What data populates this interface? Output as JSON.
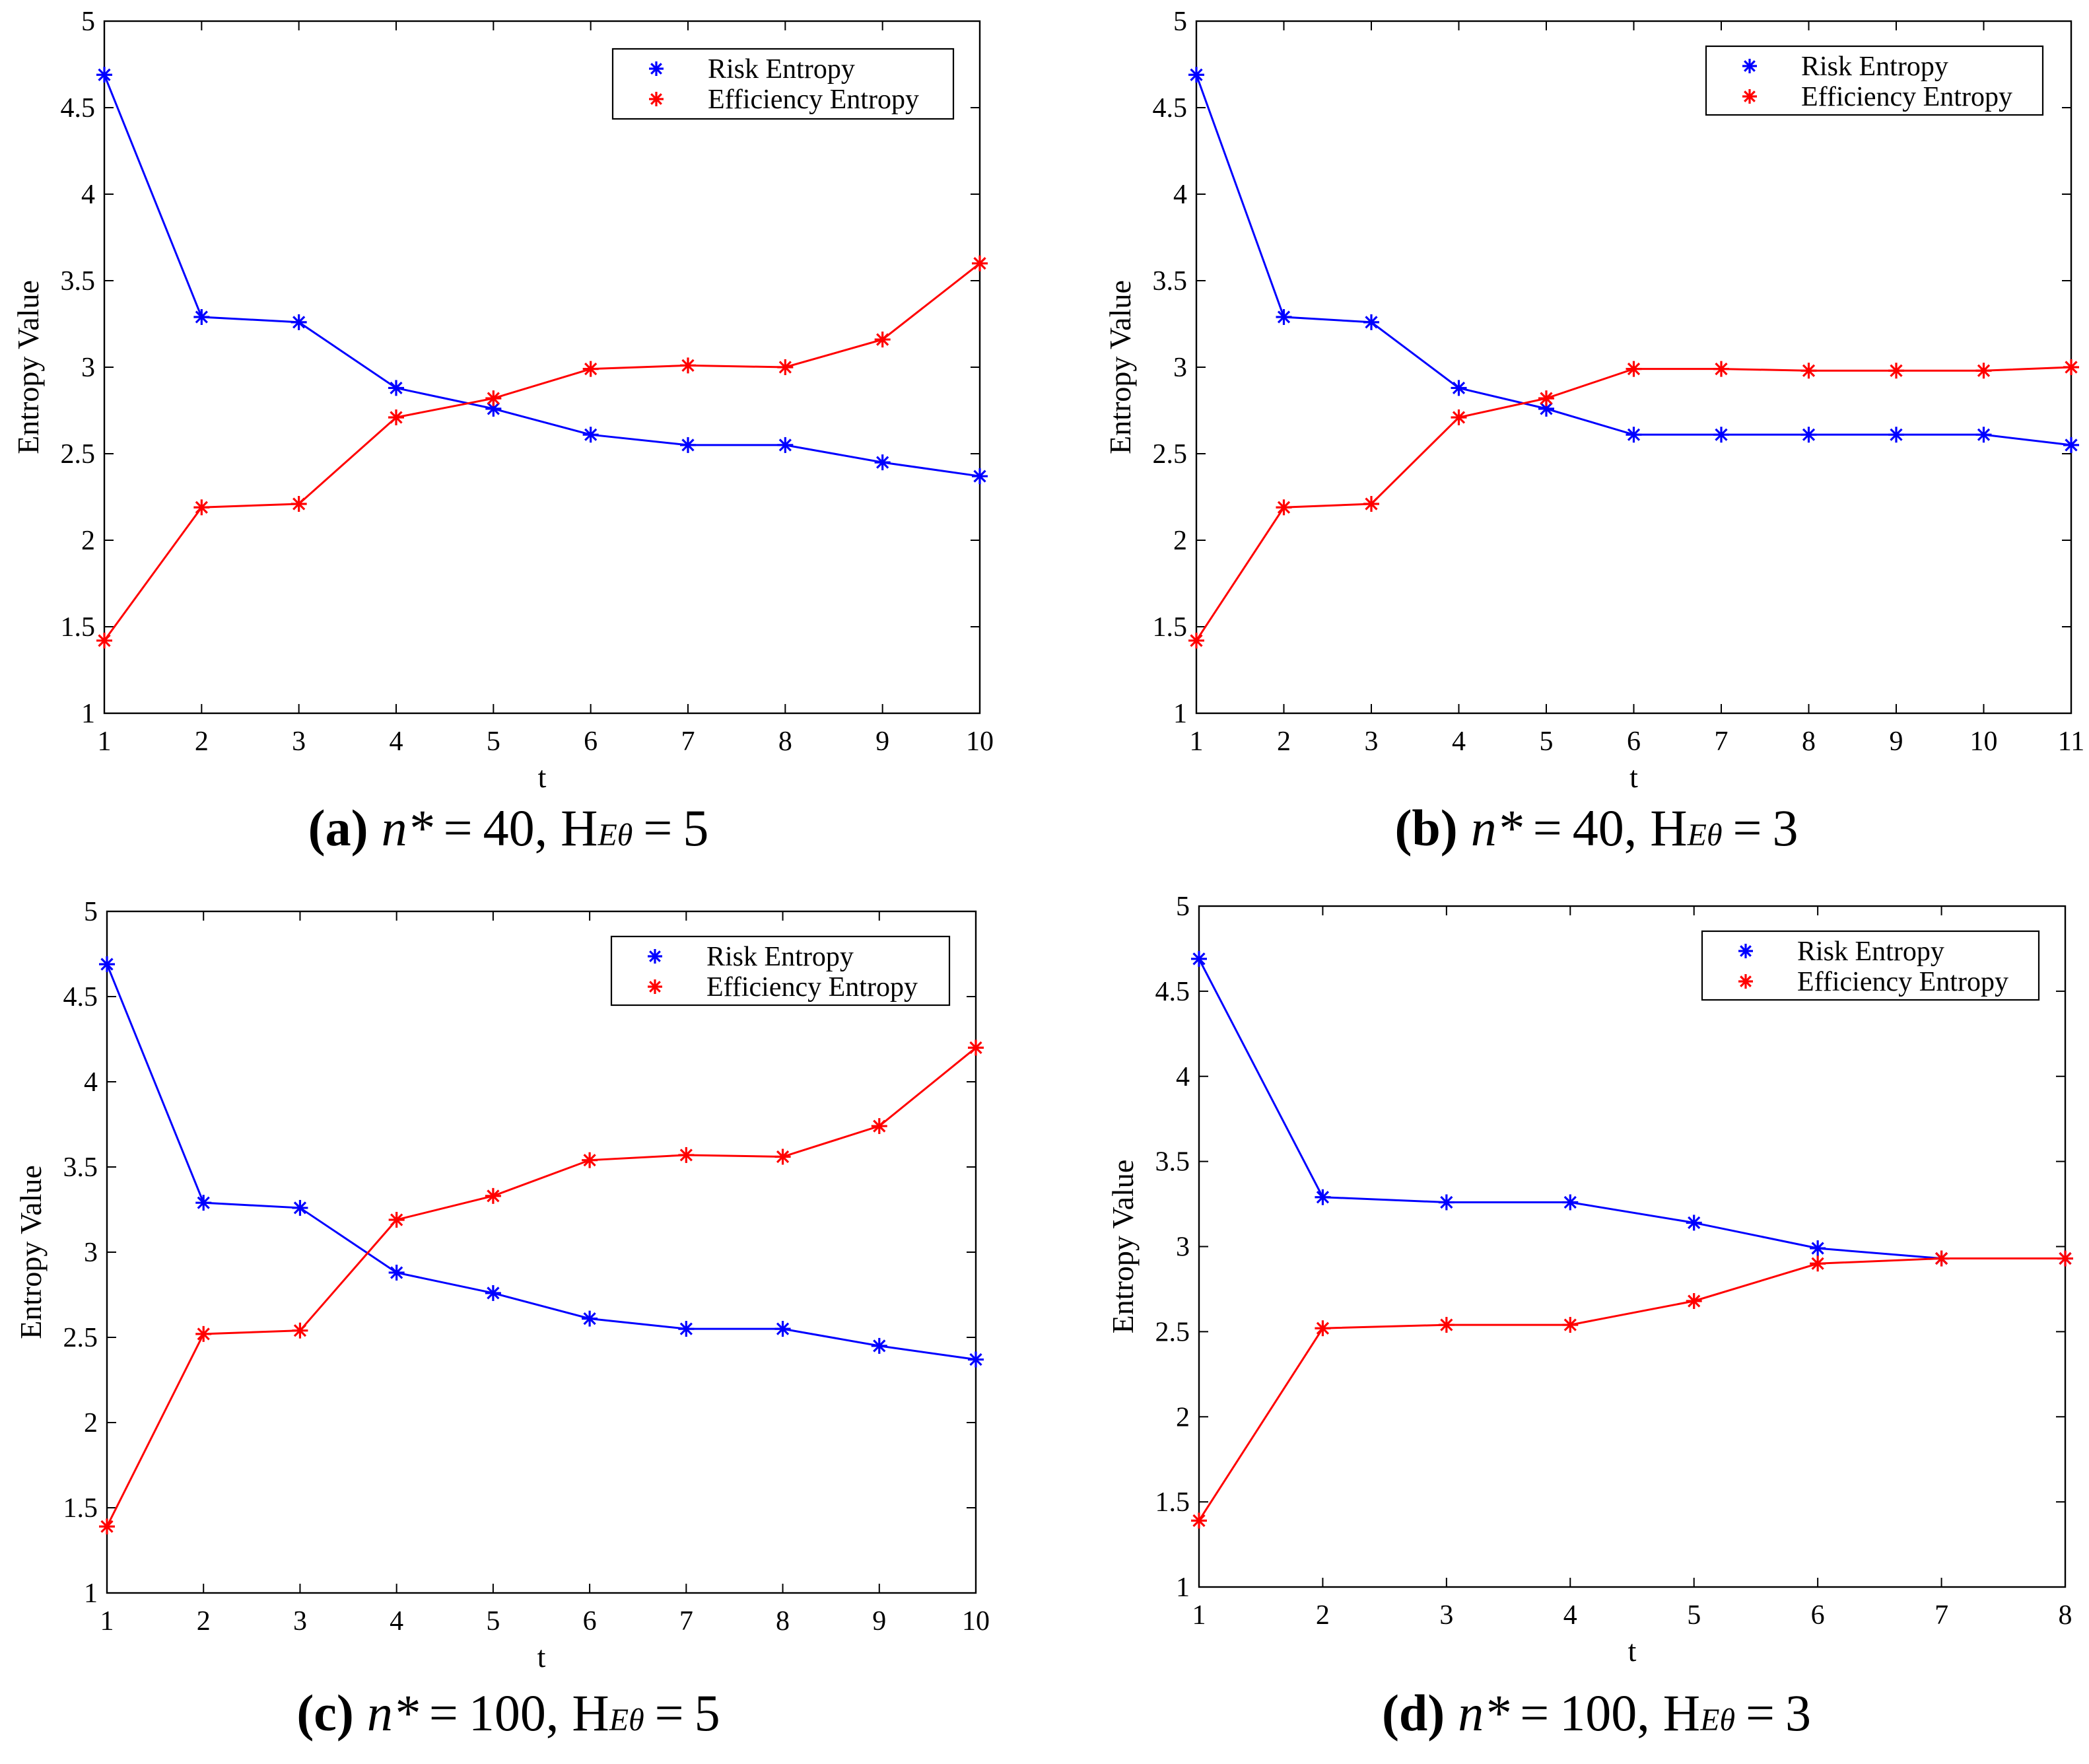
{
  "chart_data": [
    {
      "id": "a",
      "type": "line",
      "xlabel": "t",
      "ylabel": "Entropy Value",
      "xlim": [
        1,
        10
      ],
      "ylim": [
        1,
        5
      ],
      "xticks": [
        "1",
        "2",
        "3",
        "4",
        "5",
        "6",
        "7",
        "8",
        "9",
        "10"
      ],
      "yticks": [
        "1",
        "1.5",
        "2",
        "2.5",
        "3",
        "3.5",
        "4",
        "4.5",
        "5"
      ],
      "legend_position": "top-right",
      "series": [
        {
          "name": "Risk Entropy",
          "color": "#0000ff",
          "x": [
            1,
            2,
            3,
            4,
            5,
            6,
            7,
            8,
            9,
            10
          ],
          "values": [
            4.69,
            3.29,
            3.26,
            2.88,
            2.76,
            2.61,
            2.55,
            2.55,
            2.45,
            2.37
          ]
        },
        {
          "name": "Efficiency Entropy",
          "color": "#ff0000",
          "x": [
            1,
            2,
            3,
            4,
            5,
            6,
            7,
            8,
            9,
            10
          ],
          "values": [
            1.42,
            2.19,
            2.21,
            2.71,
            2.82,
            2.99,
            3.01,
            3.0,
            3.16,
            3.6
          ]
        }
      ],
      "caption": {
        "label": "(a)",
        "nval": "40",
        "heval": "5"
      }
    },
    {
      "id": "b",
      "type": "line",
      "xlabel": "t",
      "ylabel": "Entropy Value",
      "xlim": [
        1,
        11
      ],
      "ylim": [
        1,
        5
      ],
      "xticks": [
        "1",
        "2",
        "3",
        "4",
        "5",
        "6",
        "7",
        "8",
        "9",
        "10",
        "11"
      ],
      "yticks": [
        "1",
        "1.5",
        "2",
        "2.5",
        "3",
        "3.5",
        "4",
        "4.5",
        "5"
      ],
      "legend_position": "top-right",
      "series": [
        {
          "name": "Risk Entropy",
          "color": "#0000ff",
          "x": [
            1,
            2,
            3,
            4,
            5,
            6,
            7,
            8,
            9,
            10,
            11
          ],
          "values": [
            4.69,
            3.29,
            3.26,
            2.88,
            2.76,
            2.61,
            2.61,
            2.61,
            2.61,
            2.61,
            2.55
          ]
        },
        {
          "name": "Efficiency Entropy",
          "color": "#ff0000",
          "x": [
            1,
            2,
            3,
            4,
            5,
            6,
            7,
            8,
            9,
            10,
            11
          ],
          "values": [
            1.42,
            2.19,
            2.21,
            2.71,
            2.82,
            2.99,
            2.99,
            2.98,
            2.98,
            2.98,
            3.0
          ]
        }
      ],
      "caption": {
        "label": "(b)",
        "nval": "40",
        "heval": "3"
      }
    },
    {
      "id": "c",
      "type": "line",
      "xlabel": "t",
      "ylabel": "Entropy Value",
      "xlim": [
        1,
        10
      ],
      "ylim": [
        1,
        5
      ],
      "xticks": [
        "1",
        "2",
        "3",
        "4",
        "5",
        "6",
        "7",
        "8",
        "9",
        "10"
      ],
      "yticks": [
        "1",
        "1.5",
        "2",
        "2.5",
        "3",
        "3.5",
        "4",
        "4.5",
        "5"
      ],
      "legend_position": "top-right",
      "series": [
        {
          "name": "Risk Entropy",
          "color": "#0000ff",
          "x": [
            1,
            2,
            3,
            4,
            5,
            6,
            7,
            8,
            9,
            10
          ],
          "values": [
            4.69,
            3.29,
            3.26,
            2.88,
            2.76,
            2.61,
            2.55,
            2.55,
            2.45,
            2.37
          ]
        },
        {
          "name": "Efficiency Entropy",
          "color": "#ff0000",
          "x": [
            1,
            2,
            3,
            4,
            5,
            6,
            7,
            8,
            9,
            10
          ],
          "values": [
            1.39,
            2.52,
            2.54,
            3.19,
            3.33,
            3.54,
            3.57,
            3.56,
            3.74,
            4.2
          ]
        }
      ],
      "caption": {
        "label": "(c)",
        "nval": "100",
        "heval": "5"
      }
    },
    {
      "id": "d",
      "type": "line",
      "xlabel": "t",
      "ylabel": "Entropy Value",
      "xlim": [
        1,
        8
      ],
      "ylim": [
        1,
        5
      ],
      "xticks": [
        "1",
        "2",
        "3",
        "4",
        "5",
        "6",
        "7",
        "8"
      ],
      "yticks": [
        "1",
        "1.5",
        "2",
        "2.5",
        "3",
        "3.5",
        "4",
        "4.5",
        "5"
      ],
      "legend_position": "top-right",
      "series": [
        {
          "name": "Risk Entropy",
          "color": "#0000ff",
          "x": [
            1,
            2,
            3,
            4,
            5,
            6,
            7,
            8
          ],
          "values": [
            4.69,
            3.29,
            3.26,
            3.26,
            3.14,
            2.99,
            2.93,
            2.93
          ]
        },
        {
          "name": "Efficiency Entropy",
          "color": "#ff0000",
          "x": [
            1,
            2,
            3,
            4,
            5,
            6,
            7,
            8
          ],
          "values": [
            1.39,
            2.52,
            2.54,
            2.54,
            2.68,
            2.9,
            2.93,
            2.93
          ]
        }
      ],
      "caption": {
        "label": "(d)",
        "nval": "100",
        "heval": "3"
      }
    }
  ],
  "caption_text": {
    "n_symbol": "n*",
    "equals": "=",
    "comma": ",",
    "h_symbol": "H",
    "h_subscript": "Eθ"
  }
}
